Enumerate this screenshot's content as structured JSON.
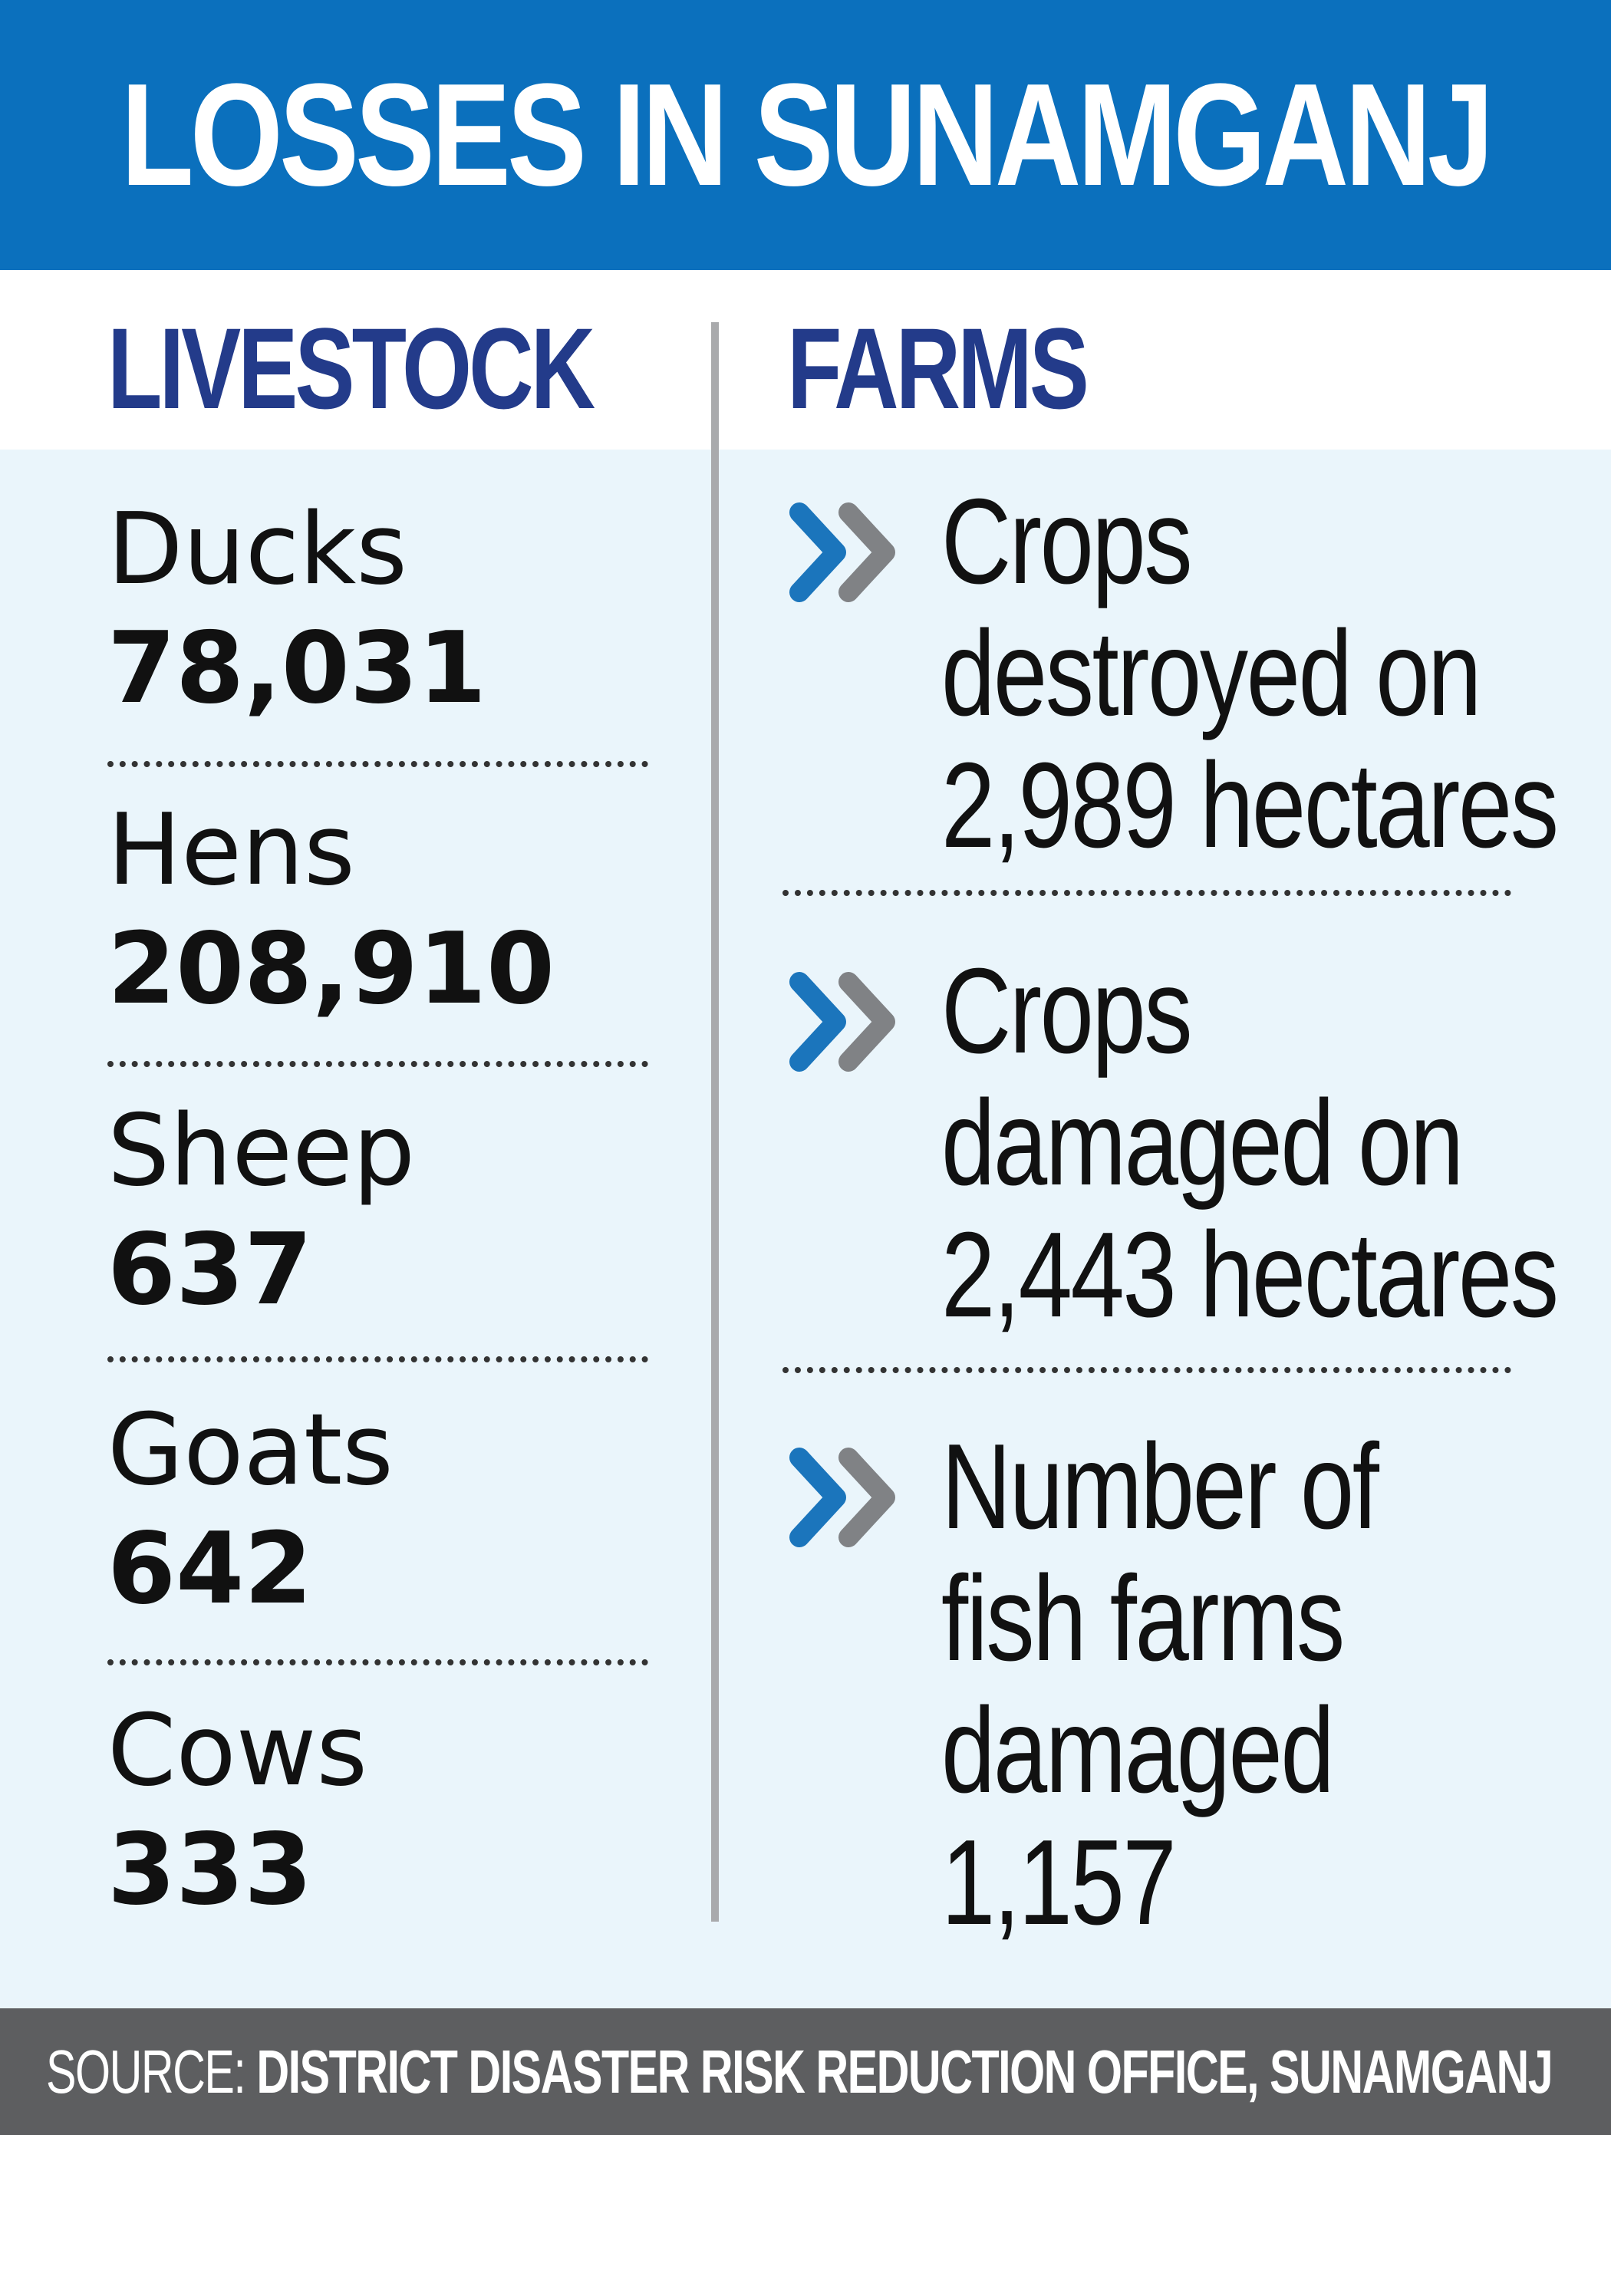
{
  "title": "LOSSES IN SUNAMGANJ",
  "livestock": {
    "heading": "LIVESTOCK",
    "items": [
      {
        "label": "Ducks",
        "value": "78,031"
      },
      {
        "label": "Hens",
        "value": "208,910"
      },
      {
        "label": "Sheep",
        "value": "637"
      },
      {
        "label": "Goats",
        "value": "642"
      },
      {
        "label": "Cows",
        "value": "333"
      }
    ]
  },
  "farms": {
    "heading": "FARMS",
    "items": [
      {
        "lines": [
          "Crops",
          "destroyed on",
          "2,989 hectares"
        ]
      },
      {
        "lines": [
          "Crops",
          "damaged on",
          "2,443 hectares"
        ]
      },
      {
        "lines": [
          "Number of",
          "fish farms",
          "damaged",
          "1,157"
        ]
      }
    ]
  },
  "source": {
    "prefix": "SOURCE:",
    "text": "DISTRICT DISASTER RISK REDUCTION OFFICE, SUNAMGANJ"
  },
  "colors": {
    "title_bg": "#0b70bd",
    "heading": "#233b8a",
    "panel_bg": "#eaf5fb",
    "divider": "#a9aaac",
    "source_bg": "#5d5e60",
    "chevron_blue": "#1b75bc",
    "chevron_gray": "#808285"
  },
  "icons": {
    "farm_bullet": "double-chevron-right-icon"
  }
}
